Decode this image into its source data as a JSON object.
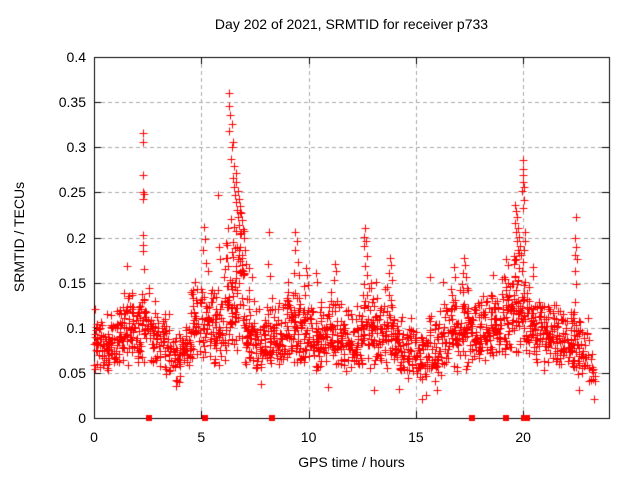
{
  "page": {
    "background_color": "#ffffff",
    "text_color": "#000000"
  },
  "chart_data": {
    "type": "scatter",
    "title": "Day 202 of 2021, SRMTID for receiver p733",
    "xlabel": "GPS time / hours",
    "ylabel": "SRMTID / TECUs",
    "xlim": [
      0,
      24
    ],
    "ylim": [
      0,
      0.4
    ],
    "xticks": [
      0,
      5,
      10,
      15,
      20
    ],
    "xtick_labels": [
      "0",
      "5",
      "10",
      "15",
      "20"
    ],
    "yticks": [
      0,
      0.05,
      0.1,
      0.15,
      0.2,
      0.25,
      0.3,
      0.35,
      0.4
    ],
    "ytick_labels": [
      "0",
      "0.05",
      "0.1",
      "0.15",
      "0.2",
      "0.25",
      "0.3",
      "0.35",
      "0.4"
    ],
    "grid": {
      "show": true,
      "style": "dashed",
      "color": "#aaaaaa"
    },
    "frame_color": "#000000",
    "legend": null,
    "marker": {
      "shape": "plus",
      "color": "#ff0000",
      "size": 9
    },
    "baseline_markers": {
      "shape": "filled-square",
      "color": "#ff0000",
      "y": 0,
      "x": [
        2.56,
        5.17,
        8.3,
        17.62,
        19.2,
        20.05,
        20.2
      ]
    },
    "spike_points": [
      [
        1.55,
        0.168
      ],
      [
        2.28,
        0.316
      ],
      [
        2.3,
        0.306
      ],
      [
        2.29,
        0.269
      ],
      [
        2.27,
        0.25
      ],
      [
        2.31,
        0.248
      ],
      [
        2.3,
        0.243
      ],
      [
        2.28,
        0.203
      ],
      [
        2.3,
        0.192
      ],
      [
        2.29,
        0.185
      ],
      [
        2.33,
        0.165
      ],
      [
        5.12,
        0.212
      ],
      [
        5.18,
        0.198
      ],
      [
        5.08,
        0.186
      ],
      [
        5.22,
        0.172
      ],
      [
        5.3,
        0.163
      ],
      [
        5.78,
        0.247
      ],
      [
        5.82,
        0.19
      ],
      [
        5.86,
        0.176
      ],
      [
        6.3,
        0.36
      ],
      [
        6.27,
        0.346
      ],
      [
        6.34,
        0.336
      ],
      [
        6.41,
        0.326
      ],
      [
        6.31,
        0.318
      ],
      [
        6.49,
        0.306
      ],
      [
        6.44,
        0.3
      ],
      [
        6.37,
        0.287
      ],
      [
        6.54,
        0.279
      ],
      [
        6.6,
        0.271
      ],
      [
        6.47,
        0.266
      ],
      [
        6.64,
        0.261
      ],
      [
        6.51,
        0.256
      ],
      [
        6.69,
        0.251
      ],
      [
        6.57,
        0.247
      ],
      [
        6.74,
        0.243
      ],
      [
        6.61,
        0.239
      ],
      [
        6.79,
        0.235
      ],
      [
        6.67,
        0.231
      ],
      [
        6.84,
        0.227
      ],
      [
        6.71,
        0.223
      ],
      [
        6.89,
        0.219
      ],
      [
        6.77,
        0.214
      ],
      [
        6.94,
        0.209
      ],
      [
        6.81,
        0.204
      ],
      [
        6.99,
        0.199
      ],
      [
        6.24,
        0.211
      ],
      [
        6.19,
        0.192
      ],
      [
        6.14,
        0.177
      ],
      [
        7.04,
        0.186
      ],
      [
        7.09,
        0.171
      ],
      [
        6.39,
        0.221
      ],
      [
        6.52,
        0.212
      ],
      [
        6.46,
        0.195
      ],
      [
        6.58,
        0.188
      ],
      [
        7.24,
        0.166
      ],
      [
        7.34,
        0.156
      ],
      [
        8.14,
        0.206
      ],
      [
        8.09,
        0.171
      ],
      [
        8.19,
        0.157
      ],
      [
        9.39,
        0.206
      ],
      [
        9.44,
        0.196
      ],
      [
        9.37,
        0.186
      ],
      [
        9.49,
        0.173
      ],
      [
        9.31,
        0.161
      ],
      [
        9.54,
        0.158
      ],
      [
        9.86,
        0.166
      ],
      [
        9.92,
        0.158
      ],
      [
        10.34,
        0.161
      ],
      [
        10.4,
        0.151
      ],
      [
        11.24,
        0.171
      ],
      [
        11.3,
        0.163
      ],
      [
        11.19,
        0.153
      ],
      [
        12.61,
        0.211
      ],
      [
        12.59,
        0.201
      ],
      [
        12.67,
        0.196
      ],
      [
        12.57,
        0.191
      ],
      [
        12.71,
        0.179
      ],
      [
        12.64,
        0.168
      ],
      [
        12.74,
        0.159
      ],
      [
        13.14,
        0.151
      ],
      [
        13.81,
        0.177
      ],
      [
        13.85,
        0.169
      ],
      [
        13.77,
        0.161
      ],
      [
        13.89,
        0.153
      ],
      [
        15.68,
        0.156
      ],
      [
        16.28,
        0.151
      ],
      [
        16.79,
        0.167
      ],
      [
        16.84,
        0.156
      ],
      [
        17.24,
        0.177
      ],
      [
        17.29,
        0.169
      ],
      [
        17.19,
        0.161
      ],
      [
        17.34,
        0.156
      ],
      [
        17.14,
        0.149
      ],
      [
        17.39,
        0.144
      ],
      [
        18.59,
        0.159
      ],
      [
        19.19,
        0.176
      ],
      [
        19.29,
        0.169
      ],
      [
        19.6,
        0.236
      ],
      [
        19.65,
        0.229
      ],
      [
        19.7,
        0.223
      ],
      [
        19.62,
        0.216
      ],
      [
        19.75,
        0.211
      ],
      [
        19.68,
        0.206
      ],
      [
        19.8,
        0.201
      ],
      [
        19.72,
        0.196
      ],
      [
        19.85,
        0.191
      ],
      [
        19.78,
        0.186
      ],
      [
        19.9,
        0.181
      ],
      [
        19.66,
        0.176
      ],
      [
        19.58,
        0.171
      ],
      [
        19.82,
        0.166
      ],
      [
        19.99,
        0.286
      ],
      [
        19.97,
        0.276
      ],
      [
        20.01,
        0.269
      ],
      [
        20.0,
        0.262
      ],
      [
        20.04,
        0.256
      ],
      [
        19.96,
        0.251
      ],
      [
        20.02,
        0.241
      ],
      [
        20.0,
        0.233
      ],
      [
        20.07,
        0.206
      ],
      [
        20.1,
        0.196
      ],
      [
        20.05,
        0.186
      ],
      [
        22.44,
        0.223
      ],
      [
        22.41,
        0.199
      ],
      [
        22.47,
        0.189
      ],
      [
        22.43,
        0.181
      ],
      [
        22.49,
        0.176
      ],
      [
        22.4,
        0.163
      ],
      [
        22.45,
        0.148
      ],
      [
        22.42,
        0.128
      ],
      [
        3.8,
        0.036
      ],
      [
        7.8,
        0.038
      ],
      [
        10.9,
        0.034
      ],
      [
        13.05,
        0.031
      ],
      [
        14.2,
        0.032
      ],
      [
        15.3,
        0.021
      ],
      [
        15.48,
        0.026
      ],
      [
        16.0,
        0.031
      ],
      [
        22.6,
        0.031
      ],
      [
        23.3,
        0.021
      ],
      [
        23.35,
        0.046
      ]
    ],
    "baseline_bins_format": "[t_start_hr, t_end_hr, count, y_min, y_max]",
    "baseline_bins": [
      [
        0,
        0.5,
        38,
        0.048,
        0.125
      ],
      [
        0.5,
        1,
        40,
        0.045,
        0.12
      ],
      [
        1,
        1.5,
        42,
        0.05,
        0.145
      ],
      [
        1.5,
        2,
        44,
        0.055,
        0.15
      ],
      [
        2,
        2.5,
        42,
        0.05,
        0.155
      ],
      [
        2.5,
        3,
        40,
        0.05,
        0.15
      ],
      [
        3,
        3.5,
        36,
        0.042,
        0.125
      ],
      [
        3.5,
        4,
        32,
        0.04,
        0.105
      ],
      [
        4,
        4.5,
        36,
        0.045,
        0.12
      ],
      [
        4.5,
        5,
        40,
        0.055,
        0.155
      ],
      [
        5,
        5.5,
        42,
        0.055,
        0.16
      ],
      [
        5.5,
        6,
        40,
        0.05,
        0.15
      ],
      [
        6,
        6.5,
        46,
        0.06,
        0.2
      ],
      [
        6.5,
        7,
        50,
        0.06,
        0.23
      ],
      [
        7,
        7.5,
        42,
        0.05,
        0.155
      ],
      [
        7.5,
        8,
        40,
        0.045,
        0.125
      ],
      [
        8,
        8.5,
        40,
        0.05,
        0.135
      ],
      [
        8.5,
        9,
        40,
        0.05,
        0.14
      ],
      [
        9,
        9.5,
        44,
        0.05,
        0.16
      ],
      [
        9.5,
        10,
        44,
        0.05,
        0.155
      ],
      [
        10,
        10.5,
        40,
        0.045,
        0.135
      ],
      [
        10.5,
        11,
        40,
        0.05,
        0.14
      ],
      [
        11,
        11.5,
        40,
        0.05,
        0.15
      ],
      [
        11.5,
        12,
        40,
        0.045,
        0.125
      ],
      [
        12,
        12.5,
        40,
        0.05,
        0.135
      ],
      [
        12.5,
        13,
        42,
        0.05,
        0.16
      ],
      [
        13,
        13.5,
        40,
        0.05,
        0.14
      ],
      [
        13.5,
        14,
        40,
        0.05,
        0.155
      ],
      [
        14,
        14.5,
        38,
        0.042,
        0.12
      ],
      [
        14.5,
        15,
        36,
        0.04,
        0.115
      ],
      [
        15,
        15.5,
        34,
        0.035,
        0.11
      ],
      [
        15.5,
        16,
        36,
        0.04,
        0.12
      ],
      [
        16,
        16.5,
        36,
        0.042,
        0.13
      ],
      [
        16.5,
        17,
        40,
        0.05,
        0.155
      ],
      [
        17,
        17.5,
        40,
        0.05,
        0.16
      ],
      [
        17.5,
        18,
        40,
        0.05,
        0.14
      ],
      [
        18,
        18.5,
        40,
        0.05,
        0.15
      ],
      [
        18.5,
        19,
        44,
        0.055,
        0.16
      ],
      [
        19,
        19.5,
        44,
        0.06,
        0.17
      ],
      [
        19.5,
        20,
        46,
        0.06,
        0.2
      ],
      [
        20,
        20.5,
        44,
        0.055,
        0.175
      ],
      [
        20.5,
        21,
        40,
        0.05,
        0.15
      ],
      [
        21,
        21.5,
        40,
        0.05,
        0.14
      ],
      [
        21.5,
        22,
        40,
        0.045,
        0.13
      ],
      [
        22,
        22.5,
        38,
        0.04,
        0.125
      ],
      [
        22.5,
        23,
        34,
        0.032,
        0.115
      ],
      [
        23,
        23.4,
        14,
        0.02,
        0.1
      ]
    ]
  }
}
